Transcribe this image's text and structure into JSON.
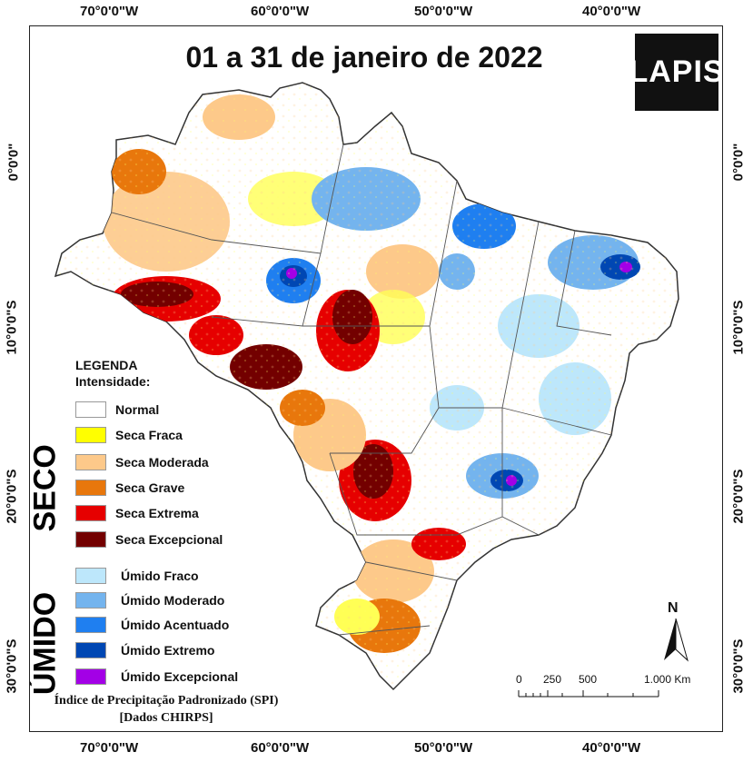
{
  "title": "01 a 31 de janeiro de 2022",
  "logo_text": "LAPIS",
  "axes": {
    "longitude_labels": [
      "70°0'0\"W",
      "60°0'0\"W",
      "50°0'0\"W",
      "40°0'0\"W"
    ],
    "latitude_labels": [
      "0°0'0\"",
      "10°0'0\"S",
      "20°0'0\"S",
      "30°0'0\"S"
    ]
  },
  "legend": {
    "title_line1": "LEGENDA",
    "title_line2": "Intensidade:",
    "group_dry": "SECO",
    "group_wet": "ÚMIDO",
    "dry_items": [
      {
        "label": "Normal",
        "color": "#ffffff"
      },
      {
        "label": "Seca Fraca",
        "color": "#ffff00"
      },
      {
        "label": "Seca Moderada",
        "color": "#fdc98a"
      },
      {
        "label": "Seca Grave",
        "color": "#e8770c"
      },
      {
        "label": "Seca Extrema",
        "color": "#e60000"
      },
      {
        "label": "Seca Excepcional",
        "color": "#730000"
      }
    ],
    "wet_items": [
      {
        "label": "Úmido Fraco",
        "color": "#bde7fb"
      },
      {
        "label": "Úmido Moderado",
        "color": "#74b4ee"
      },
      {
        "label": "Úmido Acentuado",
        "color": "#1f7ff0"
      },
      {
        "label": "Úmido Extremo",
        "color": "#0047b3"
      },
      {
        "label": "Úmido Excepcional",
        "color": "#a300e6"
      }
    ]
  },
  "footer": {
    "line1": "Índice de Precipitação Padronizado (SPI)",
    "line2": "[Dados CHIRPS]"
  },
  "scale_bar": {
    "ticks": [
      "0",
      "250",
      "500",
      "1.000 Km"
    ]
  },
  "north_arrow": "N"
}
